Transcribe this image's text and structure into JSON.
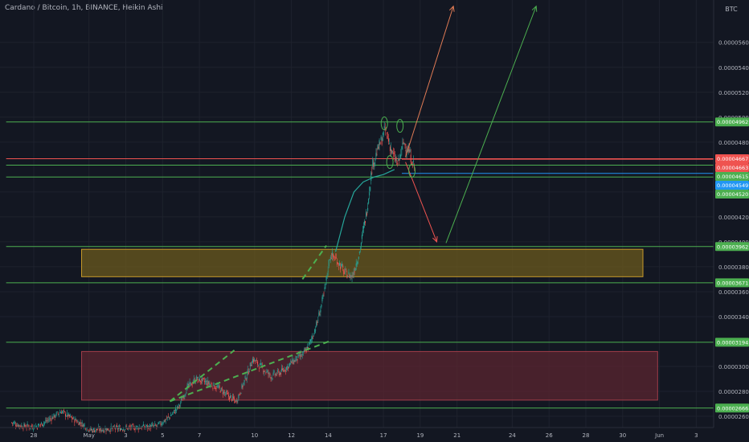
{
  "header": {
    "title": "Cardano / Bitcoin, 1h, BINANCE, Heikin Ashi"
  },
  "chart_data": {
    "type": "candlestick",
    "title": "Cardano / Bitcoin, 1h, BINANCE, Heikin Ashi",
    "currency": "BTC",
    "ylim": [
      2.51e-05,
      5.94e-05
    ],
    "y_ticks": [
      "0.00002600",
      "0.00002800",
      "0.00003000",
      "0.00003400",
      "0.00003600",
      "0.00003800",
      "0.00004000",
      "0.00004200",
      "0.00004400",
      "0.00004800",
      "0.00005000",
      "0.00005200",
      "0.00005400",
      "0.00005600"
    ],
    "x_labels": [
      {
        "label": "28",
        "day": 0
      },
      {
        "label": "May",
        "day": 3
      },
      {
        "label": "3",
        "day": 5
      },
      {
        "label": "5",
        "day": 7
      },
      {
        "label": "7",
        "day": 9
      },
      {
        "label": "10",
        "day": 12
      },
      {
        "label": "12",
        "day": 14
      },
      {
        "label": "14",
        "day": 16
      },
      {
        "label": "17",
        "day": 19
      },
      {
        "label": "19",
        "day": 21
      },
      {
        "label": "21",
        "day": 23
      },
      {
        "label": "24",
        "day": 26
      },
      {
        "label": "26",
        "day": 28
      },
      {
        "label": "28",
        "day": 30
      },
      {
        "label": "30",
        "day": 32
      },
      {
        "label": "Jun",
        "day": 34
      },
      {
        "label": "3",
        "day": 36
      }
    ],
    "horizontal_levels": [
      {
        "label": "0.00004962",
        "value": 4.962e-05,
        "color": "#4caf50",
        "x_start_day": -1.5
      },
      {
        "label": "0.00004667",
        "value": 4.667e-05,
        "color": "#ef5350",
        "x_start_day": -1.5
      },
      {
        "label": "0.00004663",
        "value": 4.663e-05,
        "color": "#ef5350",
        "x_start_day": 20
      },
      {
        "label": "0.00004615",
        "value": 4.615e-05,
        "color": "#4caf50",
        "x_start_day": -1.5
      },
      {
        "label": "0.00004549",
        "value": 4.549e-05,
        "color": "#2196f3",
        "x_start_day": 20
      },
      {
        "label": "0.00004520",
        "value": 4.52e-05,
        "color": "#4caf50",
        "x_start_day": -1.5
      },
      {
        "label": "0.00003962",
        "value": 3.962e-05,
        "color": "#4caf50",
        "x_start_day": -1.5
      },
      {
        "label": "0.00003671",
        "value": 3.671e-05,
        "color": "#4caf50",
        "x_start_day": -1.5
      },
      {
        "label": "0.00003194",
        "value": 3.194e-05,
        "color": "#4caf50",
        "x_start_day": -1.5
      },
      {
        "label": "0.00002666",
        "value": 2.666e-05,
        "color": "#4caf50",
        "x_start_day": -1.5
      }
    ],
    "zones": [
      {
        "name": "upper-zone",
        "x_day": [
          2.6,
          33.1
        ],
        "y": [
          3.72e-05,
          3.94e-05
        ],
        "fill": "#6b5a1e",
        "stroke": "#c89b2a"
      },
      {
        "name": "lower-zone",
        "x_day": [
          2.6,
          33.9
        ],
        "y": [
          2.73e-05,
          3.12e-05
        ],
        "fill": "#5b2630",
        "stroke": "#a23e4a"
      }
    ],
    "trendlines": [
      {
        "name": "lower-trendline",
        "from": {
          "day": 7.4,
          "value": 2.72e-05
        },
        "to": {
          "day": 16.2,
          "value": 3.21e-05
        },
        "color": "#4caf50"
      },
      {
        "name": "upper-trendline-1",
        "from": {
          "day": 7.4,
          "value": 2.72e-05
        },
        "to": {
          "day": 10.9,
          "value": 3.13e-05
        },
        "color": "#4caf50"
      },
      {
        "name": "upper-trendline-2",
        "from": {
          "day": 14.6,
          "value": 3.7e-05
        },
        "to": {
          "day": 15.9,
          "value": 3.97e-05
        },
        "color": "#4caf50"
      }
    ],
    "projections": [
      {
        "name": "bull-arrow-1",
        "from": {
          "day": 20.2,
          "value": 4.68e-05
        },
        "to": {
          "day": 22.8,
          "value": 5.89e-05
        },
        "color": "#e07b55"
      },
      {
        "name": "bear-arrow",
        "from": {
          "day": 20.2,
          "value": 4.64e-05
        },
        "to": {
          "day": 21.9,
          "value": 4e-05
        },
        "color": "#ef5350"
      },
      {
        "name": "bull-arrow-2",
        "from": {
          "day": 22.4,
          "value": 3.99e-05
        },
        "to": {
          "day": 27.3,
          "value": 5.89e-05
        },
        "color": "#4caf50"
      }
    ],
    "moving_average": {
      "color": "#26a69a",
      "points": [
        {
          "day": 16.4,
          "value": 3.92e-05
        },
        {
          "day": 16.9,
          "value": 4.2e-05
        },
        {
          "day": 17.4,
          "value": 4.4e-05
        },
        {
          "day": 17.9,
          "value": 4.48e-05
        },
        {
          "day": 18.5,
          "value": 4.52e-05
        },
        {
          "day": 19.0,
          "value": 4.54e-05
        },
        {
          "day": 19.6,
          "value": 4.58e-05
        }
      ]
    },
    "price_path": [
      {
        "day": -1.2,
        "value": 2.55e-05
      },
      {
        "day": -0.6,
        "value": 2.52e-05
      },
      {
        "day": 0.2,
        "value": 2.52e-05
      },
      {
        "day": 0.9,
        "value": 2.58e-05
      },
      {
        "day": 1.5,
        "value": 2.64e-05
      },
      {
        "day": 2.0,
        "value": 2.59e-05
      },
      {
        "day": 2.6,
        "value": 2.54e-05
      },
      {
        "day": 3.1,
        "value": 2.49e-05
      },
      {
        "day": 6.7,
        "value": 2.52e-05
      },
      {
        "day": 7.4,
        "value": 2.6e-05
      },
      {
        "day": 7.9,
        "value": 2.68e-05
      },
      {
        "day": 8.3,
        "value": 2.82e-05
      },
      {
        "day": 8.8,
        "value": 2.9e-05
      },
      {
        "day": 9.4,
        "value": 2.87e-05
      },
      {
        "day": 10.0,
        "value": 2.83e-05
      },
      {
        "day": 10.5,
        "value": 2.77e-05
      },
      {
        "day": 11.0,
        "value": 2.72e-05
      },
      {
        "day": 11.5,
        "value": 2.9e-05
      },
      {
        "day": 11.9,
        "value": 3.06e-05
      },
      {
        "day": 12.4,
        "value": 2.99e-05
      },
      {
        "day": 12.9,
        "value": 2.92e-05
      },
      {
        "day": 13.5,
        "value": 2.96e-05
      },
      {
        "day": 14.0,
        "value": 3.03e-05
      },
      {
        "day": 14.6,
        "value": 3.09e-05
      },
      {
        "day": 15.0,
        "value": 3.18e-05
      },
      {
        "day": 15.4,
        "value": 3.35e-05
      },
      {
        "day": 15.8,
        "value": 3.6e-05
      },
      {
        "day": 16.1,
        "value": 3.9e-05
      },
      {
        "day": 16.5,
        "value": 3.85e-05
      },
      {
        "day": 16.9,
        "value": 3.75e-05
      },
      {
        "day": 17.3,
        "value": 3.72e-05
      },
      {
        "day": 17.7,
        "value": 3.92e-05
      },
      {
        "day": 18.1,
        "value": 4.25e-05
      },
      {
        "day": 18.4,
        "value": 4.62e-05
      },
      {
        "day": 18.8,
        "value": 4.78e-05
      },
      {
        "day": 19.1,
        "value": 4.9e-05
      },
      {
        "day": 19.5,
        "value": 4.7e-05
      },
      {
        "day": 19.8,
        "value": 4.62e-05
      },
      {
        "day": 20.1,
        "value": 4.8e-05
      },
      {
        "day": 20.4,
        "value": 4.72e-05
      },
      {
        "day": 20.7,
        "value": 4.59e-05
      }
    ]
  }
}
